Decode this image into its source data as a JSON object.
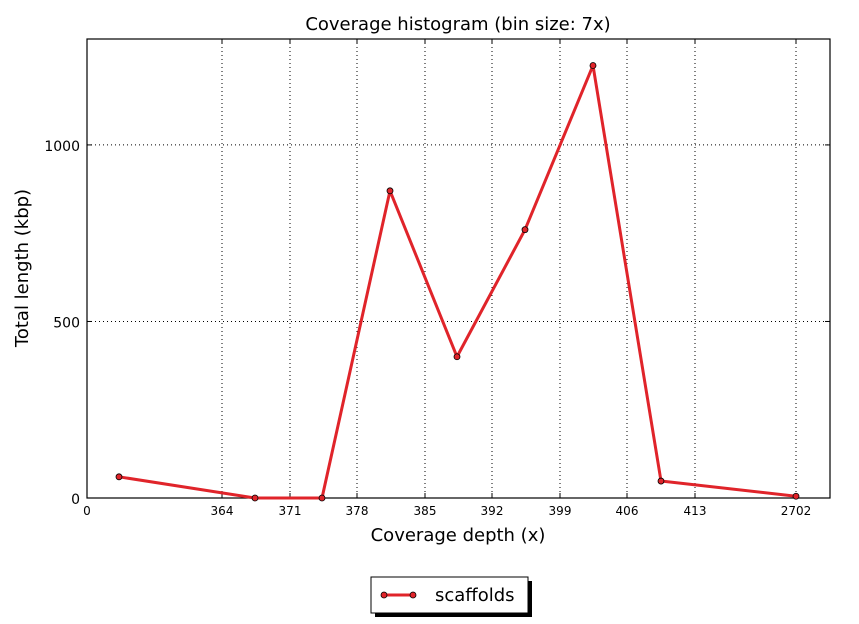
{
  "chart_data": {
    "type": "line",
    "title": "Coverage histogram (bin size: 7x)",
    "xlabel": "Coverage depth (x)",
    "ylabel": "Total length (kbp)",
    "x_tick_labels": [
      "0",
      "364",
      "371",
      "378",
      "385",
      "392",
      "399",
      "406",
      "413",
      "2702"
    ],
    "y_tick_labels": [
      "0",
      "500",
      "1000"
    ],
    "ylim": [
      0,
      1300
    ],
    "grid": true,
    "legend_position": "bottom-center",
    "series": [
      {
        "name": "scaffolds",
        "color": "#e0242a",
        "points": [
          {
            "x": "<364",
            "y": 60
          },
          {
            "x": "364-371",
            "y": 0
          },
          {
            "x": "371-378",
            "y": 0
          },
          {
            "x": "378-385",
            "y": 870
          },
          {
            "x": "385-392",
            "y": 400
          },
          {
            "x": "392-399",
            "y": 760
          },
          {
            "x": "399-406",
            "y": 1225
          },
          {
            "x": "406-413",
            "y": 48
          },
          {
            "x": ">413",
            "y": 5
          }
        ]
      }
    ]
  }
}
